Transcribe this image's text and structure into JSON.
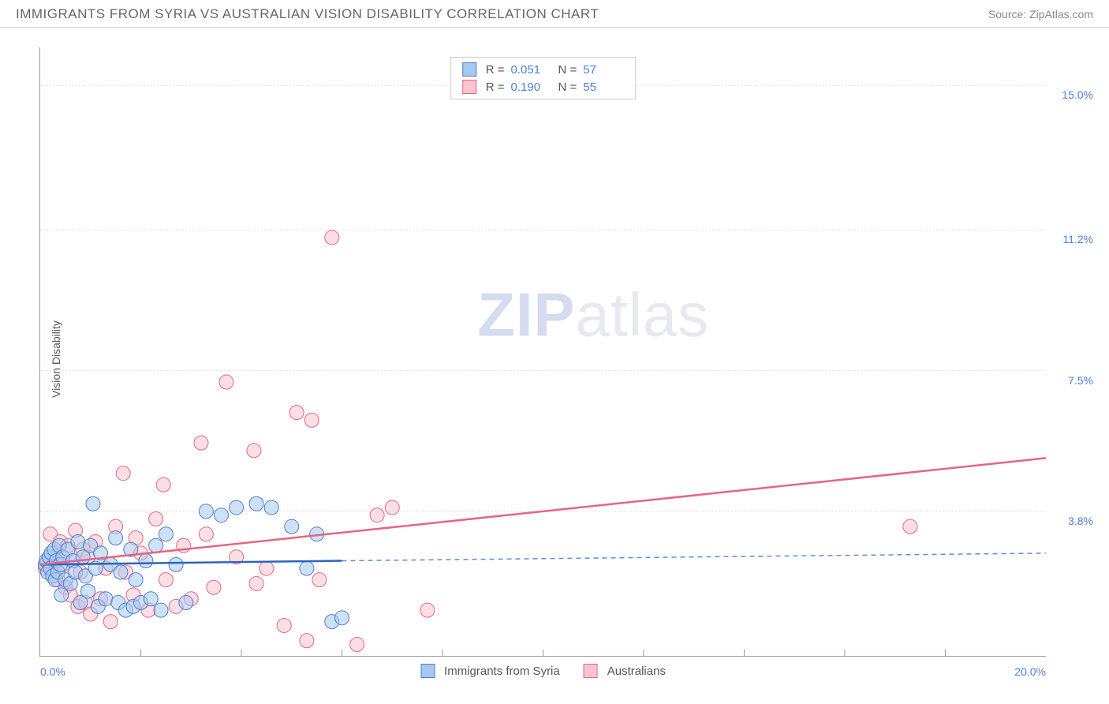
{
  "header": {
    "title": "IMMIGRANTS FROM SYRIA VS AUSTRALIAN VISION DISABILITY CORRELATION CHART",
    "source_prefix": "Source: ",
    "source": "ZipAtlas.com"
  },
  "watermark": {
    "zip": "ZIP",
    "atlas": "atlas"
  },
  "chart": {
    "type": "scatter",
    "x_min": 0.0,
    "x_max": 20.0,
    "y_min": 0.0,
    "y_max": 16.0,
    "y_label": "Vision Disability",
    "y_ticks": [
      {
        "v": 3.8,
        "label": "3.8%"
      },
      {
        "v": 7.5,
        "label": "7.5%"
      },
      {
        "v": 11.2,
        "label": "11.2%"
      },
      {
        "v": 15.0,
        "label": "15.0%"
      }
    ],
    "x_ticks_minor": [
      2,
      4,
      6,
      8,
      10,
      12,
      14,
      16,
      18
    ],
    "x_labels": [
      {
        "pos": "left",
        "label": "0.0%"
      },
      {
        "pos": "right",
        "label": "20.0%"
      }
    ],
    "marker_radius": 9,
    "grid_color": "#e0e0e0",
    "background": "#ffffff",
    "series": [
      {
        "key": "syria",
        "name": "Immigrants from Syria",
        "color_fill": "#a8c8ed",
        "color_stroke": "#4a7fd6",
        "R": "0.051",
        "N": "57",
        "trend": {
          "x1": 0.0,
          "y1": 2.4,
          "x2": 6.0,
          "y2": 2.5,
          "x2_dash": 20.0,
          "y2_dash": 2.7
        },
        "points": [
          [
            0.1,
            2.4
          ],
          [
            0.12,
            2.5
          ],
          [
            0.15,
            2.2
          ],
          [
            0.18,
            2.6
          ],
          [
            0.2,
            2.3
          ],
          [
            0.22,
            2.7
          ],
          [
            0.25,
            2.1
          ],
          [
            0.28,
            2.8
          ],
          [
            0.3,
            2.0
          ],
          [
            0.32,
            2.5
          ],
          [
            0.35,
            2.2
          ],
          [
            0.38,
            2.9
          ],
          [
            0.4,
            2.4
          ],
          [
            0.42,
            1.6
          ],
          [
            0.45,
            2.6
          ],
          [
            0.5,
            2.0
          ],
          [
            0.55,
            2.8
          ],
          [
            0.6,
            1.9
          ],
          [
            0.65,
            2.5
          ],
          [
            0.7,
            2.2
          ],
          [
            0.75,
            3.0
          ],
          [
            0.8,
            1.4
          ],
          [
            0.85,
            2.6
          ],
          [
            0.9,
            2.1
          ],
          [
            0.95,
            1.7
          ],
          [
            1.0,
            2.9
          ],
          [
            1.05,
            4.0
          ],
          [
            1.1,
            2.3
          ],
          [
            1.15,
            1.3
          ],
          [
            1.2,
            2.7
          ],
          [
            1.3,
            1.5
          ],
          [
            1.4,
            2.4
          ],
          [
            1.5,
            3.1
          ],
          [
            1.55,
            1.4
          ],
          [
            1.6,
            2.2
          ],
          [
            1.7,
            1.2
          ],
          [
            1.8,
            2.8
          ],
          [
            1.85,
            1.3
          ],
          [
            1.9,
            2.0
          ],
          [
            2.0,
            1.4
          ],
          [
            2.1,
            2.5
          ],
          [
            2.2,
            1.5
          ],
          [
            2.3,
            2.9
          ],
          [
            2.4,
            1.2
          ],
          [
            2.5,
            3.2
          ],
          [
            2.7,
            2.4
          ],
          [
            2.9,
            1.4
          ],
          [
            3.3,
            3.8
          ],
          [
            3.6,
            3.7
          ],
          [
            3.9,
            3.9
          ],
          [
            4.3,
            4.0
          ],
          [
            4.6,
            3.9
          ],
          [
            5.0,
            3.4
          ],
          [
            5.3,
            2.3
          ],
          [
            5.5,
            3.2
          ],
          [
            5.8,
            0.9
          ],
          [
            6.0,
            1.0
          ]
        ]
      },
      {
        "key": "australians",
        "name": "Australians",
        "color_fill": "#f7c4d0",
        "color_stroke": "#e8657f",
        "R": "0.190",
        "N": "55",
        "trend": {
          "x1": 0.0,
          "y1": 2.4,
          "x2": 20.0,
          "y2": 5.2
        },
        "points": [
          [
            0.1,
            2.3
          ],
          [
            0.15,
            2.5
          ],
          [
            0.2,
            3.2
          ],
          [
            0.25,
            2.1
          ],
          [
            0.3,
            2.7
          ],
          [
            0.35,
            2.0
          ],
          [
            0.4,
            3.0
          ],
          [
            0.45,
            2.4
          ],
          [
            0.5,
            1.8
          ],
          [
            0.55,
            2.9
          ],
          [
            0.6,
            1.6
          ],
          [
            0.65,
            2.5
          ],
          [
            0.7,
            3.3
          ],
          [
            0.75,
            1.3
          ],
          [
            0.8,
            2.2
          ],
          [
            0.85,
            2.8
          ],
          [
            0.9,
            1.4
          ],
          [
            0.95,
            2.6
          ],
          [
            1.0,
            1.1
          ],
          [
            1.1,
            3.0
          ],
          [
            1.2,
            1.5
          ],
          [
            1.3,
            2.3
          ],
          [
            1.4,
            0.9
          ],
          [
            1.5,
            3.4
          ],
          [
            1.65,
            4.8
          ],
          [
            1.7,
            2.2
          ],
          [
            1.85,
            1.6
          ],
          [
            1.9,
            3.1
          ],
          [
            2.0,
            2.7
          ],
          [
            2.15,
            1.2
          ],
          [
            2.3,
            3.6
          ],
          [
            2.45,
            4.5
          ],
          [
            2.5,
            2.0
          ],
          [
            2.7,
            1.3
          ],
          [
            2.85,
            2.9
          ],
          [
            3.0,
            1.5
          ],
          [
            3.2,
            5.6
          ],
          [
            3.3,
            3.2
          ],
          [
            3.45,
            1.8
          ],
          [
            3.7,
            7.2
          ],
          [
            3.9,
            2.6
          ],
          [
            4.25,
            5.4
          ],
          [
            4.3,
            1.9
          ],
          [
            4.5,
            2.3
          ],
          [
            4.85,
            0.8
          ],
          [
            5.1,
            6.4
          ],
          [
            5.3,
            0.4
          ],
          [
            5.4,
            6.2
          ],
          [
            5.55,
            2.0
          ],
          [
            5.8,
            11.0
          ],
          [
            6.3,
            0.3
          ],
          [
            6.7,
            3.7
          ],
          [
            7.0,
            3.9
          ],
          [
            7.7,
            1.2
          ],
          [
            17.3,
            3.4
          ]
        ]
      }
    ],
    "stats_box": {
      "rows": [
        0,
        1
      ]
    },
    "bottom_legend": [
      0,
      1
    ]
  }
}
